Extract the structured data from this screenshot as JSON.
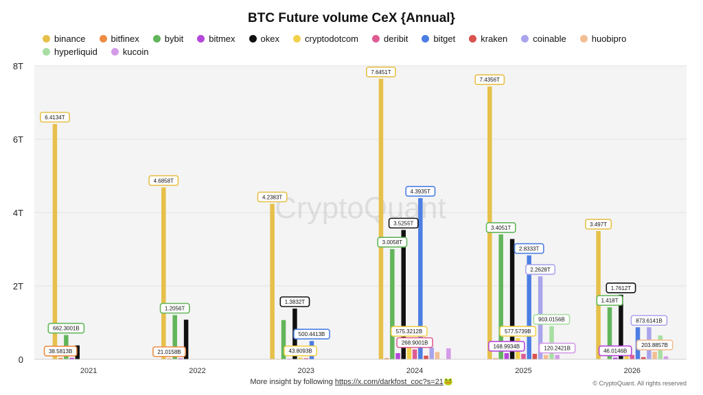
{
  "chart_data": {
    "type": "bar",
    "title": "BTC Future volume CeX {Annual}",
    "categories": [
      "2021",
      "2022",
      "2023",
      "2024",
      "2025",
      "2026"
    ],
    "y_ticks": [
      "0",
      "2T",
      "4T",
      "6T",
      "8T"
    ],
    "ylim": [
      0,
      8
    ],
    "y_unit": "T",
    "grid": true,
    "legend_position": "top",
    "series": [
      {
        "name": "binance",
        "color": "#E6C04A",
        "values": [
          6.4134,
          4.6858,
          4.2383,
          7.6451,
          7.4356,
          3.497
        ]
      },
      {
        "name": "bitfinex",
        "color": "#EE8C44",
        "values": [
          0.0386,
          0.021,
          0.012,
          0.03,
          0.025,
          0.008
        ]
      },
      {
        "name": "bybit",
        "color": "#62B55A",
        "values": [
          0.6623,
          1.2056,
          1.07,
          3.0058,
          3.4051,
          1.418
        ]
      },
      {
        "name": "bitmex",
        "color": "#B548DB",
        "values": [
          0.04,
          0.025,
          0.016,
          0.169,
          0.169,
          0.046
        ]
      },
      {
        "name": "okex",
        "color": "#111111",
        "values": [
          0.38,
          1.08,
          1.3832,
          3.5255,
          3.28,
          1.7612
        ]
      },
      {
        "name": "cryptodotcom",
        "color": "#F1D14C",
        "values": [
          0,
          0,
          0.0438,
          0.5753,
          0.5776,
          0.12
        ]
      },
      {
        "name": "deribit",
        "color": "#DF5C93",
        "values": [
          0,
          0,
          0.03,
          0.2689,
          0.15,
          0.12
        ]
      },
      {
        "name": "bitget",
        "color": "#4C7EE3",
        "values": [
          0,
          0,
          0.5004,
          4.3935,
          2.8333,
          0.8736
        ]
      },
      {
        "name": "kraken",
        "color": "#D9534F",
        "values": [
          0,
          0,
          0.01,
          0.1,
          0.15,
          0.06
        ]
      },
      {
        "name": "coinable",
        "color": "#A9A4EC",
        "values": [
          0,
          0,
          0,
          0.32,
          2.2628,
          0.8736
        ]
      },
      {
        "name": "huobipro",
        "color": "#F2BE94",
        "values": [
          0,
          0,
          0,
          0.2,
          0.12,
          0.2039
        ]
      },
      {
        "name": "hyperliquid",
        "color": "#A8DEA2",
        "values": [
          0,
          0,
          0,
          0,
          0.903,
          0.65
        ]
      },
      {
        "name": "kucoin",
        "color": "#D49BE8",
        "values": [
          0,
          0,
          0,
          0.3,
          0.1202,
          0.08
        ]
      }
    ],
    "data_labels": [
      {
        "text": "6.4134T",
        "category": "2021",
        "series": "binance"
      },
      {
        "text": "662.3001B",
        "category": "2021",
        "series": "bybit"
      },
      {
        "text": "38.5813B",
        "category": "2021",
        "series": "bitfinex"
      },
      {
        "text": "4.6858T",
        "category": "2022",
        "series": "binance"
      },
      {
        "text": "1.2056T",
        "category": "2022",
        "series": "bybit"
      },
      {
        "text": "21.0158B",
        "category": "2022",
        "series": "bitfinex"
      },
      {
        "text": "4.2383T",
        "category": "2023",
        "series": "binance"
      },
      {
        "text": "1.3832T",
        "category": "2023",
        "series": "okex"
      },
      {
        "text": "500.4413B",
        "category": "2023",
        "series": "bitget"
      },
      {
        "text": "43.8093B",
        "category": "2023",
        "series": "cryptodotcom"
      },
      {
        "text": "7.6451T",
        "category": "2024",
        "series": "binance"
      },
      {
        "text": "3.5255T",
        "category": "2024",
        "series": "okex"
      },
      {
        "text": "3.0058T",
        "category": "2024",
        "series": "bybit"
      },
      {
        "text": "4.3935T",
        "category": "2024",
        "series": "bitget"
      },
      {
        "text": "575.3212B",
        "category": "2024",
        "series": "cryptodotcom"
      },
      {
        "text": "268.9001B",
        "category": "2024",
        "series": "deribit"
      },
      {
        "text": "7.4356T",
        "category": "2025",
        "series": "binance"
      },
      {
        "text": "3.4051T",
        "category": "2025",
        "series": "bybit"
      },
      {
        "text": "2.8333T",
        "category": "2025",
        "series": "bitget"
      },
      {
        "text": "2.2628T",
        "category": "2025",
        "series": "coinable"
      },
      {
        "text": "903.0156B",
        "category": "2025",
        "series": "hyperliquid"
      },
      {
        "text": "577.5739B",
        "category": "2025",
        "series": "cryptodotcom"
      },
      {
        "text": "168.9934B",
        "category": "2025",
        "series": "bitmex"
      },
      {
        "text": "120.2421B",
        "category": "2025",
        "series": "kucoin"
      },
      {
        "text": "3.497T",
        "category": "2026",
        "series": "binance"
      },
      {
        "text": "1.7612T",
        "category": "2026",
        "series": "okex"
      },
      {
        "text": "1.418T",
        "category": "2026",
        "series": "bybit"
      },
      {
        "text": "873.6141B",
        "category": "2026",
        "series": "coinable"
      },
      {
        "text": "203.8857B",
        "category": "2026",
        "series": "huobipro"
      },
      {
        "text": "46.0146B",
        "category": "2026",
        "series": "bitmex"
      }
    ]
  },
  "watermark": "CryptoQuant",
  "footer": {
    "text": "More insight by following",
    "link": "https://x.com/darkfost_coc?s=21",
    "emoji": "🐸"
  },
  "copyright": "© CryptoQuant. All rights reserved"
}
